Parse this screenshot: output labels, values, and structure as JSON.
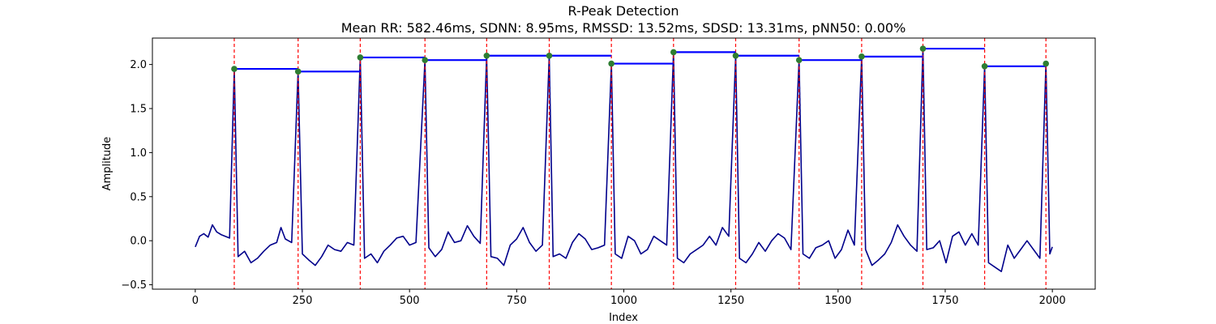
{
  "chart_data": {
    "type": "line",
    "title": "R-Peak Detection",
    "subtitle": "Mean RR: 582.46ms, SDNN: 8.95ms, RMSSD: 13.52ms, SDSD: 13.31ms, pNN50: 0.00%",
    "xlabel": "Index",
    "ylabel": "Amplitude",
    "xlim": [
      -100,
      2100
    ],
    "ylim": [
      -0.55,
      2.3
    ],
    "xticks": [
      0,
      250,
      500,
      750,
      1000,
      1250,
      1500,
      1750,
      2000
    ],
    "xtick_labels": [
      "0",
      "250",
      "500",
      "750",
      "1000",
      "1250",
      "1500",
      "1750",
      "2000"
    ],
    "yticks": [
      -0.5,
      0.0,
      0.5,
      1.0,
      1.5,
      2.0
    ],
    "ytick_labels": [
      "−0.5",
      "0.0",
      "0.5",
      "1.0",
      "1.5",
      "2.0"
    ],
    "grid": false,
    "colors": {
      "signal": "#00008b",
      "peak_line": "#ff0000",
      "rr_segment": "#0000ff",
      "peak_marker": "#2e7d32"
    },
    "r_peaks": {
      "x": [
        91,
        240,
        385,
        536,
        680,
        826,
        971,
        1116,
        1261,
        1409,
        1555,
        1698,
        1842,
        1985
      ],
      "y": [
        1.95,
        1.92,
        2.08,
        2.05,
        2.1,
        2.1,
        2.01,
        2.14,
        2.1,
        2.05,
        2.09,
        2.18,
        1.98,
        2.01
      ]
    },
    "rr_segments": [
      {
        "x0": 91,
        "x1": 240,
        "y": 1.95
      },
      {
        "x0": 240,
        "x1": 385,
        "y": 1.92
      },
      {
        "x0": 385,
        "x1": 536,
        "y": 2.08
      },
      {
        "x0": 536,
        "x1": 680,
        "y": 2.05
      },
      {
        "x0": 680,
        "x1": 826,
        "y": 2.1
      },
      {
        "x0": 826,
        "x1": 971,
        "y": 2.1
      },
      {
        "x0": 971,
        "x1": 1116,
        "y": 2.01
      },
      {
        "x0": 1116,
        "x1": 1261,
        "y": 2.14
      },
      {
        "x0": 1261,
        "x1": 1409,
        "y": 2.1
      },
      {
        "x0": 1409,
        "x1": 1555,
        "y": 2.05
      },
      {
        "x0": 1555,
        "x1": 1698,
        "y": 2.09
      },
      {
        "x0": 1698,
        "x1": 1842,
        "y": 2.18
      },
      {
        "x0": 1842,
        "x1": 1985,
        "y": 1.98
      }
    ],
    "signal": {
      "x": [
        0,
        10,
        20,
        30,
        40,
        50,
        60,
        70,
        80,
        91,
        100,
        115,
        130,
        145,
        160,
        175,
        190,
        200,
        210,
        225,
        240,
        250,
        265,
        280,
        295,
        310,
        325,
        340,
        355,
        370,
        385,
        395,
        410,
        425,
        440,
        455,
        470,
        485,
        500,
        515,
        536,
        545,
        560,
        575,
        590,
        605,
        620,
        635,
        650,
        665,
        680,
        690,
        705,
        720,
        735,
        750,
        765,
        780,
        795,
        810,
        826,
        835,
        850,
        865,
        880,
        895,
        910,
        925,
        940,
        955,
        971,
        980,
        995,
        1010,
        1025,
        1040,
        1055,
        1070,
        1085,
        1100,
        1116,
        1125,
        1140,
        1155,
        1170,
        1185,
        1200,
        1215,
        1230,
        1245,
        1261,
        1270,
        1285,
        1300,
        1315,
        1330,
        1345,
        1360,
        1375,
        1390,
        1409,
        1418,
        1433,
        1448,
        1463,
        1478,
        1493,
        1508,
        1523,
        1538,
        1555,
        1564,
        1579,
        1594,
        1609,
        1624,
        1639,
        1654,
        1669,
        1684,
        1698,
        1707,
        1722,
        1737,
        1752,
        1767,
        1782,
        1797,
        1812,
        1827,
        1842,
        1851,
        1866,
        1881,
        1896,
        1911,
        1926,
        1941,
        1956,
        1971,
        1985,
        1994,
        2000
      ],
      "y": [
        -0.07,
        0.05,
        0.08,
        0.04,
        0.18,
        0.1,
        0.07,
        0.05,
        0.03,
        1.95,
        -0.18,
        -0.12,
        -0.25,
        -0.2,
        -0.12,
        -0.05,
        -0.02,
        0.15,
        0.02,
        -0.02,
        1.92,
        -0.15,
        -0.22,
        -0.28,
        -0.18,
        -0.05,
        -0.1,
        -0.12,
        -0.02,
        -0.05,
        2.08,
        -0.2,
        -0.15,
        -0.25,
        -0.12,
        -0.05,
        0.03,
        0.05,
        -0.05,
        -0.02,
        2.05,
        -0.08,
        -0.18,
        -0.1,
        0.1,
        -0.02,
        0.0,
        0.17,
        0.05,
        -0.03,
        2.1,
        -0.18,
        -0.2,
        -0.28,
        -0.05,
        0.02,
        0.15,
        -0.02,
        -0.12,
        -0.05,
        2.1,
        -0.18,
        -0.15,
        -0.2,
        -0.02,
        0.08,
        0.02,
        -0.1,
        -0.08,
        -0.05,
        2.01,
        -0.15,
        -0.2,
        0.05,
        0.0,
        -0.15,
        -0.1,
        0.05,
        0.0,
        -0.05,
        2.14,
        -0.2,
        -0.25,
        -0.15,
        -0.1,
        -0.05,
        0.05,
        -0.05,
        0.15,
        0.05,
        2.1,
        -0.2,
        -0.25,
        -0.15,
        -0.02,
        -0.12,
        0.0,
        0.08,
        0.03,
        -0.1,
        2.05,
        -0.15,
        -0.2,
        -0.08,
        -0.05,
        0.0,
        -0.2,
        -0.1,
        0.12,
        -0.05,
        2.09,
        -0.1,
        -0.28,
        -0.22,
        -0.15,
        -0.02,
        0.18,
        0.05,
        -0.05,
        -0.12,
        2.18,
        -0.1,
        -0.08,
        0.0,
        -0.25,
        0.05,
        0.1,
        -0.05,
        0.08,
        -0.05,
        1.98,
        -0.25,
        -0.3,
        -0.35,
        -0.05,
        -0.2,
        -0.1,
        0.0,
        -0.1,
        -0.2,
        2.01,
        -0.15,
        -0.07
      ]
    }
  }
}
